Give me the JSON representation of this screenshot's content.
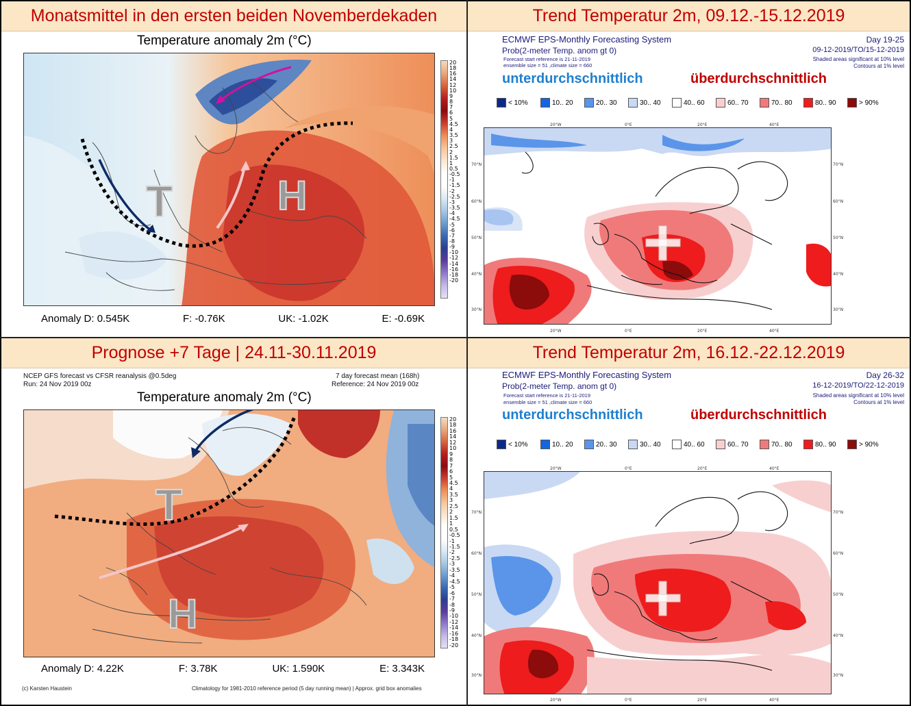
{
  "panels": {
    "top_left": {
      "banner": "Monatsmittel in den ersten beiden Novemberdekaden",
      "map_title": "Temperature anomaly 2m (°C)",
      "anomalies": [
        "Anomaly D: 0.545K",
        "F: -0.76K",
        "UK: -1.02K",
        "E: -0.69K"
      ],
      "marker_low": "T",
      "marker_high": "H"
    },
    "top_right": {
      "banner": "Trend Temperatur 2m, 09.12.-15.12.2019",
      "system": "ECMWF EPS-Monthly Forecasting System",
      "prob": "Prob(2-meter Temp. anom gt 0)",
      "start_ref": "Forecast start reference is 21-11-2019",
      "ensemble": "ensemble size = 51  ,climate size = 660",
      "day": "Day 19-25",
      "period": "09-12-2019/TO/15-12-2019",
      "shaded": "Shaded areas significant at 10% level",
      "contours": "Contours at 1% level",
      "below": "unterdurchschnittlich",
      "above": "überdurchschnittlich"
    },
    "bottom_left": {
      "banner": "Prognose +7 Tage | 24.11-30.11.2019",
      "source": "NCEP GFS forecast vs CFSR reanalysis @0.5deg",
      "run": "Run: 24 Nov 2019 00z",
      "forecast_mean": "7 day forecast mean (168h)",
      "reference": "Reference: 24 Nov 2019 00z",
      "map_title": "Temperature anomaly 2m (°C)",
      "anomalies": [
        "Anomaly D: 4.22K",
        "F: 3.78K",
        "UK: 1.590K",
        "E: 3.343K"
      ],
      "credit": "(c) Karsten Haustein",
      "climatology": "Climatology for 1981-2010 reference period (5 day running mean) | Approx. grid box anomalies",
      "marker_low": "T",
      "marker_high": "H"
    },
    "bottom_right": {
      "banner": "Trend Temperatur 2m, 16.12.-22.12.2019",
      "system": "ECMWF EPS-Monthly Forecasting System",
      "prob": "Prob(2-meter Temp. anom gt 0)",
      "start_ref": "Forecast start reference is 21-11-2019",
      "ensemble": "ensemble size = 51  ,climate size = 660",
      "day": "Day 26-32",
      "period": "16-12-2019/TO/22-12-2019",
      "shaded": "Shaded areas significant at 10% level",
      "contours": "Contours at 1% level",
      "below": "unterdurchschnittlich",
      "above": "überdurchschnittlich"
    }
  },
  "colorbar_labels": [
    "20",
    "18",
    "16",
    "14",
    "12",
    "10",
    "9",
    "8",
    "7",
    "6",
    "5",
    "4.5",
    "4",
    "3.5",
    "3",
    "2.5",
    "2",
    "1.5",
    "1",
    "0.5",
    "-0.5",
    "-1",
    "-1.5",
    "-2",
    "-2.5",
    "-3",
    "-3.5",
    "-4",
    "-4.5",
    "-5",
    "-6",
    "-7",
    "-8",
    "-9",
    "-10",
    "-12",
    "-14",
    "-16",
    "-18",
    "-20"
  ],
  "prob_legend": [
    {
      "label": "< 10%",
      "color": "#0a2a8a"
    },
    {
      "label": "10.. 20",
      "color": "#1565e0"
    },
    {
      "label": "20.. 30",
      "color": "#5a95ea"
    },
    {
      "label": "30.. 40",
      "color": "#c9d9f3"
    },
    {
      "label": "40.. 60",
      "color": "#ffffff"
    },
    {
      "label": "60.. 70",
      "color": "#f8cfcf"
    },
    {
      "label": "70.. 80",
      "color": "#f07a7a"
    },
    {
      "label": "80.. 90",
      "color": "#ee1c1c"
    },
    {
      "label": "> 90%",
      "color": "#8c0b0b"
    }
  ],
  "axis_lon": [
    "20°W",
    "0°E",
    "20°E",
    "40°E"
  ],
  "axis_lat_top": [
    "70°N",
    "60°N",
    "50°N",
    "40°N",
    "30°N"
  ],
  "axis_lat_bottom": [
    "70°N",
    "60°N",
    "50°N",
    "40°N",
    "30°N"
  ]
}
